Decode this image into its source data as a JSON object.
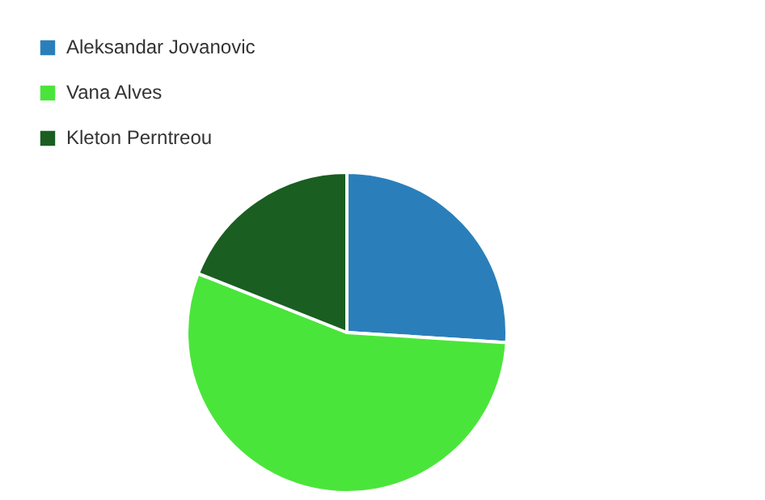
{
  "chart_data": {
    "type": "pie",
    "categories": [
      "Aleksandar Jovanovic",
      "Vana Alves",
      "Kleton Perntreou"
    ],
    "values": [
      26,
      55,
      19
    ],
    "colors": [
      "#2a7fba",
      "#4ae53a",
      "#1a5e22"
    ],
    "legend": "top left"
  }
}
